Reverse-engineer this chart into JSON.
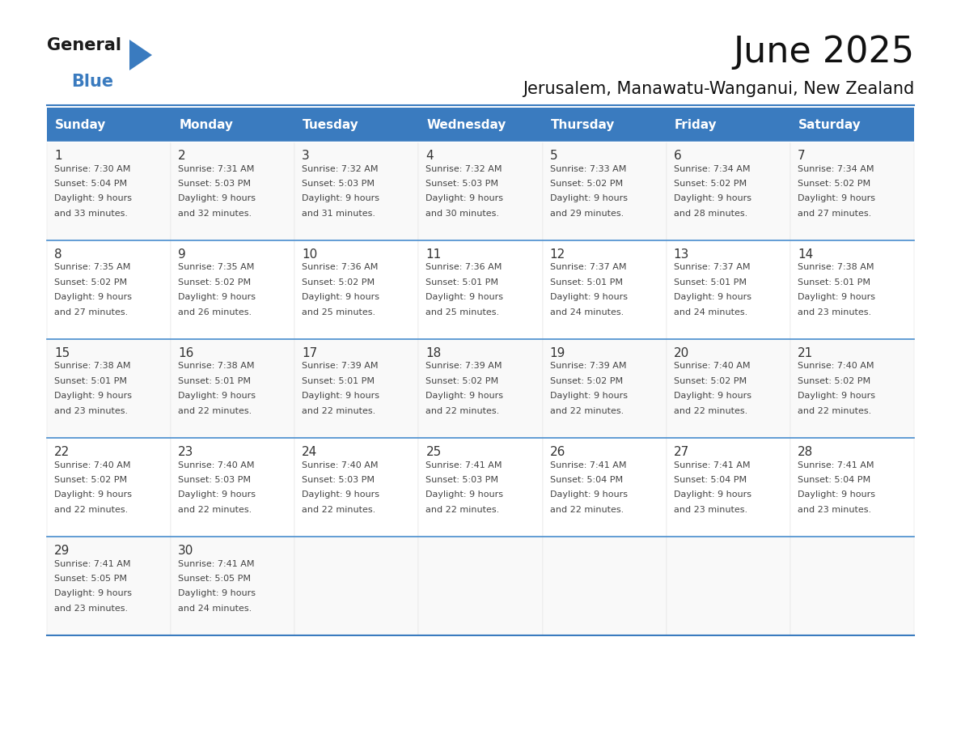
{
  "title": "June 2025",
  "subtitle": "Jerusalem, Manawatu-Wanganui, New Zealand",
  "header_color": "#3a7bbf",
  "header_text_color": "#ffffff",
  "cell_bg_even": "#f9f9f9",
  "cell_bg_odd": "#ffffff",
  "border_color": "#3a7bbf",
  "row_line_color": "#4a8fd0",
  "day_names": [
    "Sunday",
    "Monday",
    "Tuesday",
    "Wednesday",
    "Thursday",
    "Friday",
    "Saturday"
  ],
  "days": [
    {
      "day": 1,
      "col": 0,
      "row": 0,
      "sunrise": "7:30 AM",
      "sunset": "5:04 PM",
      "daylight": "9 hours and 33 minutes."
    },
    {
      "day": 2,
      "col": 1,
      "row": 0,
      "sunrise": "7:31 AM",
      "sunset": "5:03 PM",
      "daylight": "9 hours and 32 minutes."
    },
    {
      "day": 3,
      "col": 2,
      "row": 0,
      "sunrise": "7:32 AM",
      "sunset": "5:03 PM",
      "daylight": "9 hours and 31 minutes."
    },
    {
      "day": 4,
      "col": 3,
      "row": 0,
      "sunrise": "7:32 AM",
      "sunset": "5:03 PM",
      "daylight": "9 hours and 30 minutes."
    },
    {
      "day": 5,
      "col": 4,
      "row": 0,
      "sunrise": "7:33 AM",
      "sunset": "5:02 PM",
      "daylight": "9 hours and 29 minutes."
    },
    {
      "day": 6,
      "col": 5,
      "row": 0,
      "sunrise": "7:34 AM",
      "sunset": "5:02 PM",
      "daylight": "9 hours and 28 minutes."
    },
    {
      "day": 7,
      "col": 6,
      "row": 0,
      "sunrise": "7:34 AM",
      "sunset": "5:02 PM",
      "daylight": "9 hours and 27 minutes."
    },
    {
      "day": 8,
      "col": 0,
      "row": 1,
      "sunrise": "7:35 AM",
      "sunset": "5:02 PM",
      "daylight": "9 hours and 27 minutes."
    },
    {
      "day": 9,
      "col": 1,
      "row": 1,
      "sunrise": "7:35 AM",
      "sunset": "5:02 PM",
      "daylight": "9 hours and 26 minutes."
    },
    {
      "day": 10,
      "col": 2,
      "row": 1,
      "sunrise": "7:36 AM",
      "sunset": "5:02 PM",
      "daylight": "9 hours and 25 minutes."
    },
    {
      "day": 11,
      "col": 3,
      "row": 1,
      "sunrise": "7:36 AM",
      "sunset": "5:01 PM",
      "daylight": "9 hours and 25 minutes."
    },
    {
      "day": 12,
      "col": 4,
      "row": 1,
      "sunrise": "7:37 AM",
      "sunset": "5:01 PM",
      "daylight": "9 hours and 24 minutes."
    },
    {
      "day": 13,
      "col": 5,
      "row": 1,
      "sunrise": "7:37 AM",
      "sunset": "5:01 PM",
      "daylight": "9 hours and 24 minutes."
    },
    {
      "day": 14,
      "col": 6,
      "row": 1,
      "sunrise": "7:38 AM",
      "sunset": "5:01 PM",
      "daylight": "9 hours and 23 minutes."
    },
    {
      "day": 15,
      "col": 0,
      "row": 2,
      "sunrise": "7:38 AM",
      "sunset": "5:01 PM",
      "daylight": "9 hours and 23 minutes."
    },
    {
      "day": 16,
      "col": 1,
      "row": 2,
      "sunrise": "7:38 AM",
      "sunset": "5:01 PM",
      "daylight": "9 hours and 22 minutes."
    },
    {
      "day": 17,
      "col": 2,
      "row": 2,
      "sunrise": "7:39 AM",
      "sunset": "5:01 PM",
      "daylight": "9 hours and 22 minutes."
    },
    {
      "day": 18,
      "col": 3,
      "row": 2,
      "sunrise": "7:39 AM",
      "sunset": "5:02 PM",
      "daylight": "9 hours and 22 minutes."
    },
    {
      "day": 19,
      "col": 4,
      "row": 2,
      "sunrise": "7:39 AM",
      "sunset": "5:02 PM",
      "daylight": "9 hours and 22 minutes."
    },
    {
      "day": 20,
      "col": 5,
      "row": 2,
      "sunrise": "7:40 AM",
      "sunset": "5:02 PM",
      "daylight": "9 hours and 22 minutes."
    },
    {
      "day": 21,
      "col": 6,
      "row": 2,
      "sunrise": "7:40 AM",
      "sunset": "5:02 PM",
      "daylight": "9 hours and 22 minutes."
    },
    {
      "day": 22,
      "col": 0,
      "row": 3,
      "sunrise": "7:40 AM",
      "sunset": "5:02 PM",
      "daylight": "9 hours and 22 minutes."
    },
    {
      "day": 23,
      "col": 1,
      "row": 3,
      "sunrise": "7:40 AM",
      "sunset": "5:03 PM",
      "daylight": "9 hours and 22 minutes."
    },
    {
      "day": 24,
      "col": 2,
      "row": 3,
      "sunrise": "7:40 AM",
      "sunset": "5:03 PM",
      "daylight": "9 hours and 22 minutes."
    },
    {
      "day": 25,
      "col": 3,
      "row": 3,
      "sunrise": "7:41 AM",
      "sunset": "5:03 PM",
      "daylight": "9 hours and 22 minutes."
    },
    {
      "day": 26,
      "col": 4,
      "row": 3,
      "sunrise": "7:41 AM",
      "sunset": "5:04 PM",
      "daylight": "9 hours and 22 minutes."
    },
    {
      "day": 27,
      "col": 5,
      "row": 3,
      "sunrise": "7:41 AM",
      "sunset": "5:04 PM",
      "daylight": "9 hours and 23 minutes."
    },
    {
      "day": 28,
      "col": 6,
      "row": 3,
      "sunrise": "7:41 AM",
      "sunset": "5:04 PM",
      "daylight": "9 hours and 23 minutes."
    },
    {
      "day": 29,
      "col": 0,
      "row": 4,
      "sunrise": "7:41 AM",
      "sunset": "5:05 PM",
      "daylight": "9 hours and 23 minutes."
    },
    {
      "day": 30,
      "col": 1,
      "row": 4,
      "sunrise": "7:41 AM",
      "sunset": "5:05 PM",
      "daylight": "9 hours and 24 minutes."
    }
  ],
  "logo_general_color": "#1a1a1a",
  "logo_blue_color": "#3a7bbf",
  "logo_triangle_color": "#3a7bbf",
  "title_fontsize": 32,
  "subtitle_fontsize": 15,
  "header_fontsize": 11,
  "day_num_fontsize": 11,
  "cell_text_fontsize": 8
}
